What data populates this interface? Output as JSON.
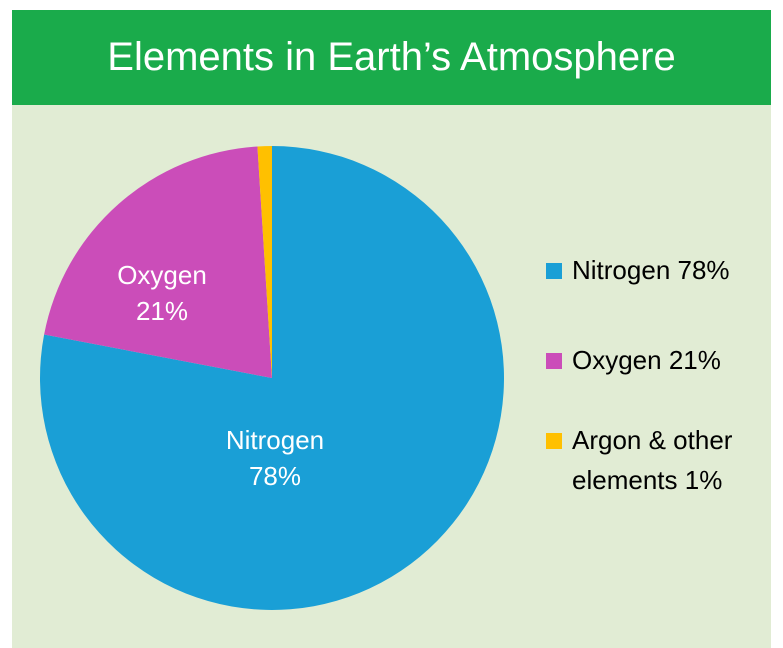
{
  "chart_data": {
    "type": "pie",
    "title": "Elements in Earth’s Atmosphere",
    "categories": [
      "Nitrogen",
      "Oxygen",
      "Argon & other elements"
    ],
    "values": [
      78,
      21,
      1
    ],
    "value_labels": [
      "78%",
      "21%",
      "1%"
    ],
    "colors": [
      "#1a9fd6",
      "#cb4db9",
      "#ffc000"
    ],
    "legend": "right"
  }
}
